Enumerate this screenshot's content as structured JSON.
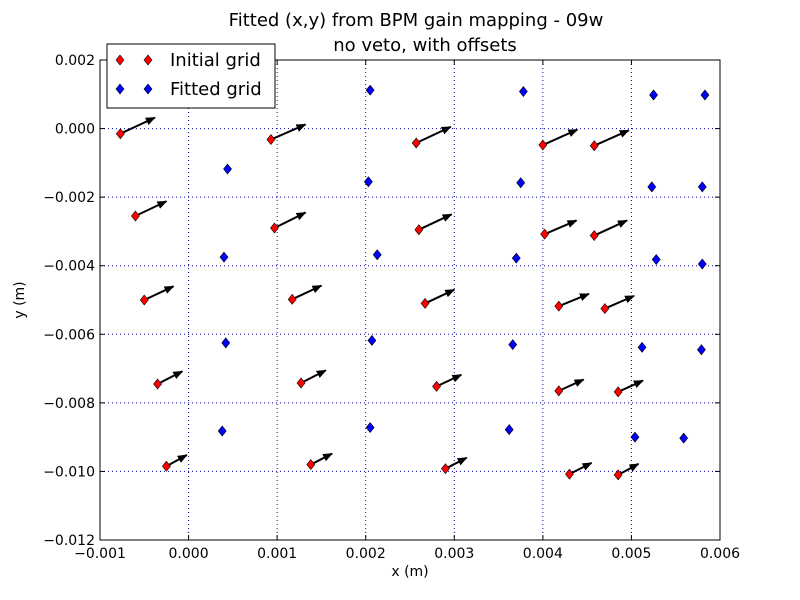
{
  "chart_data": {
    "type": "scatter",
    "title": "Fitted (x,y) from BPM gain mapping - 09w",
    "subtitle": "no veto, with offsets",
    "xlabel": "x (m)",
    "ylabel": "y (m)",
    "xlim": [
      -0.001,
      0.006
    ],
    "ylim": [
      -0.012,
      0.0025
    ],
    "x_ticks": [
      -0.001,
      0.0,
      0.001,
      0.002,
      0.003,
      0.004,
      0.005,
      0.006
    ],
    "x_tick_labels": [
      "−0.001",
      "0.000",
      "0.001",
      "0.002",
      "0.003",
      "0.004",
      "0.005",
      "0.006"
    ],
    "y_ticks": [
      0.002,
      0.0,
      -0.002,
      -0.004,
      -0.006,
      -0.008,
      -0.01,
      -0.012
    ],
    "y_tick_labels": [
      "0.002",
      "0.000",
      "−0.002",
      "−0.004",
      "−0.006",
      "−0.008",
      "−0.010",
      "−0.012"
    ],
    "grid": true,
    "legend_position": "top-left",
    "series": [
      {
        "name": "Initial grid",
        "color": "#ff0000",
        "marker": "diamond",
        "points": [
          [
            -0.00077,
            -0.00015
          ],
          [
            0.00093,
            -0.00032
          ],
          [
            0.00257,
            -0.00042
          ],
          [
            0.004,
            -0.00048
          ],
          [
            0.00458,
            -0.0005
          ],
          [
            -0.0006,
            -0.00255
          ],
          [
            0.00097,
            -0.0029
          ],
          [
            0.0026,
            -0.00295
          ],
          [
            0.00402,
            -0.00308
          ],
          [
            0.00458,
            -0.00312
          ],
          [
            -0.0005,
            -0.005
          ],
          [
            0.00117,
            -0.00498
          ],
          [
            0.00267,
            -0.0051
          ],
          [
            0.00418,
            -0.00518
          ],
          [
            0.0047,
            -0.00525
          ],
          [
            -0.00035,
            -0.00745
          ],
          [
            0.00127,
            -0.00742
          ],
          [
            0.0028,
            -0.00752
          ],
          [
            0.00418,
            -0.00765
          ],
          [
            0.00485,
            -0.00768
          ],
          [
            -0.00025,
            -0.00985
          ],
          [
            0.00138,
            -0.0098
          ],
          [
            0.0029,
            -0.00992
          ],
          [
            0.0043,
            -0.01008
          ],
          [
            0.00485,
            -0.0101
          ]
        ]
      },
      {
        "name": "Fitted grid",
        "color": "#0000ff",
        "marker": "diamond",
        "points": [
          [
            0.00205,
            0.00112
          ],
          [
            0.00378,
            0.00108
          ],
          [
            0.00525,
            0.00098
          ],
          [
            0.00583,
            0.00098
          ],
          [
            0.00044,
            -0.00118
          ],
          [
            0.00203,
            -0.00155
          ],
          [
            0.00375,
            -0.00158
          ],
          [
            0.00523,
            -0.0017
          ],
          [
            0.0058,
            -0.0017
          ],
          [
            0.0004,
            -0.00375
          ],
          [
            0.00213,
            -0.00368
          ],
          [
            0.0037,
            -0.00378
          ],
          [
            0.00528,
            -0.00382
          ],
          [
            0.0058,
            -0.00395
          ],
          [
            0.00042,
            -0.00625
          ],
          [
            0.00207,
            -0.00618
          ],
          [
            0.00366,
            -0.0063
          ],
          [
            0.00512,
            -0.00638
          ],
          [
            0.00579,
            -0.00645
          ],
          [
            0.00038,
            -0.00882
          ],
          [
            0.00205,
            -0.00872
          ],
          [
            0.00362,
            -0.00878
          ],
          [
            0.00504,
            -0.009
          ],
          [
            0.00559,
            -0.00903
          ]
        ]
      }
    ],
    "arrows": [
      {
        "from": [
          -0.00077,
          -0.00015
        ],
        "to": [
          -0.00038,
          0.00032
        ]
      },
      {
        "from": [
          0.00093,
          -0.00032
        ],
        "to": [
          0.00132,
          0.00012
        ]
      },
      {
        "from": [
          0.00257,
          -0.00042
        ],
        "to": [
          0.00296,
          5e-05
        ]
      },
      {
        "from": [
          0.004,
          -0.00048
        ],
        "to": [
          0.00439,
          -3e-05
        ]
      },
      {
        "from": [
          0.00458,
          -0.0005
        ],
        "to": [
          0.00497,
          -5e-05
        ]
      },
      {
        "from": [
          -0.0006,
          -0.00255
        ],
        "to": [
          -0.00025,
          -0.00212
        ]
      },
      {
        "from": [
          0.00097,
          -0.0029
        ],
        "to": [
          0.00132,
          -0.00245
        ]
      },
      {
        "from": [
          0.0026,
          -0.00295
        ],
        "to": [
          0.00297,
          -0.0025
        ]
      },
      {
        "from": [
          0.00402,
          -0.00308
        ],
        "to": [
          0.00438,
          -0.00268
        ]
      },
      {
        "from": [
          0.00458,
          -0.00312
        ],
        "to": [
          0.00495,
          -0.00268
        ]
      },
      {
        "from": [
          -0.0005,
          -0.005
        ],
        "to": [
          -0.00017,
          -0.0046
        ]
      },
      {
        "from": [
          0.00117,
          -0.00498
        ],
        "to": [
          0.0015,
          -0.00458
        ]
      },
      {
        "from": [
          0.00267,
          -0.0051
        ],
        "to": [
          0.003,
          -0.0047
        ]
      },
      {
        "from": [
          0.00418,
          -0.00518
        ],
        "to": [
          0.00452,
          -0.00482
        ]
      },
      {
        "from": [
          0.0047,
          -0.00525
        ],
        "to": [
          0.00503,
          -0.00488
        ]
      },
      {
        "from": [
          -0.00035,
          -0.00745
        ],
        "to": [
          -7e-05,
          -0.00708
        ]
      },
      {
        "from": [
          0.00127,
          -0.00742
        ],
        "to": [
          0.00155,
          -0.00705
        ]
      },
      {
        "from": [
          0.0028,
          -0.00752
        ],
        "to": [
          0.00308,
          -0.00718
        ]
      },
      {
        "from": [
          0.00418,
          -0.00765
        ],
        "to": [
          0.00446,
          -0.00732
        ]
      },
      {
        "from": [
          0.00485,
          -0.00768
        ],
        "to": [
          0.00513,
          -0.00735
        ]
      },
      {
        "from": [
          -0.00025,
          -0.00985
        ],
        "to": [
          -2e-05,
          -0.00952
        ]
      },
      {
        "from": [
          0.00138,
          -0.0098
        ],
        "to": [
          0.00162,
          -0.00948
        ]
      },
      {
        "from": [
          0.0029,
          -0.00992
        ],
        "to": [
          0.00314,
          -0.0096
        ]
      },
      {
        "from": [
          0.0043,
          -0.01008
        ],
        "to": [
          0.00455,
          -0.00975
        ]
      },
      {
        "from": [
          0.00485,
          -0.0101
        ],
        "to": [
          0.00508,
          -0.00978
        ]
      }
    ]
  }
}
